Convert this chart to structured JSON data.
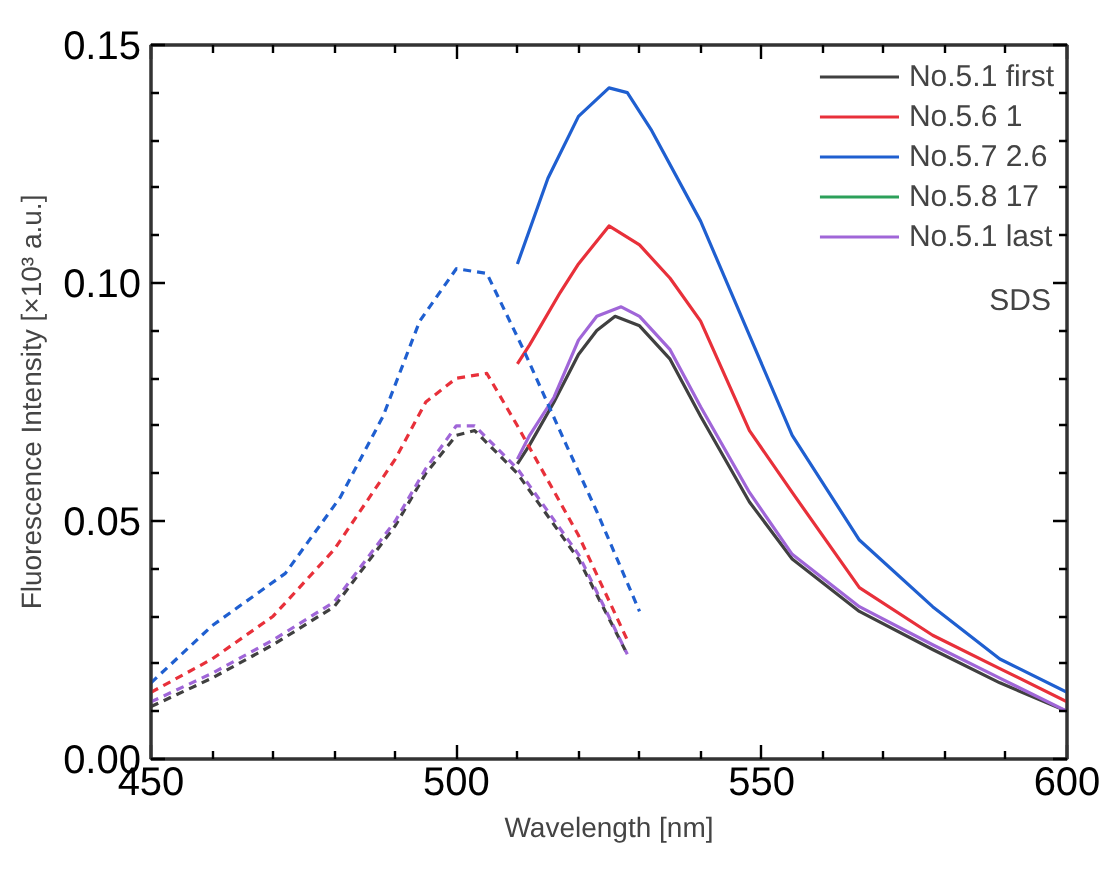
{
  "chart_data": {
    "type": "line",
    "xlabel": "Wavelength [nm]",
    "ylabel": "Fluorescence Intensity [×10³ a.u.]",
    "xlim": [
      450,
      600
    ],
    "ylim": [
      0,
      0.15
    ],
    "xticks": [
      450,
      {
        "value": 460,
        "label": null
      },
      {
        "value": 470,
        "label": null
      },
      {
        "value": 480,
        "label": null
      },
      {
        "value": 490,
        "label": null
      },
      500,
      {
        "value": 510,
        "label": null
      },
      {
        "value": 520,
        "label": null
      },
      {
        "value": 530,
        "label": null
      },
      {
        "value": 540,
        "label": null
      },
      550,
      {
        "value": 560,
        "label": null
      },
      {
        "value": 570,
        "label": null
      },
      {
        "value": 580,
        "label": null
      },
      {
        "value": 590,
        "label": null
      },
      600
    ],
    "yticks": [
      {
        "value": 0,
        "label": "0.00"
      },
      {
        "value": 0.01,
        "label": null
      },
      {
        "value": 0.02,
        "label": null
      },
      {
        "value": 0.03,
        "label": null
      },
      {
        "value": 0.04,
        "label": null
      },
      {
        "value": 0.05,
        "label": "0.05"
      },
      {
        "value": 0.06,
        "label": null
      },
      {
        "value": 0.07,
        "label": null
      },
      {
        "value": 0.08,
        "label": null
      },
      {
        "value": 0.09,
        "label": null
      },
      {
        "value": 0.1,
        "label": "0.10"
      },
      {
        "value": 0.11,
        "label": null
      },
      {
        "value": 0.12,
        "label": null
      },
      {
        "value": 0.13,
        "label": null
      },
      {
        "value": 0.14,
        "label": null
      },
      {
        "value": 0.15,
        "label": "0.15"
      }
    ],
    "grid": false,
    "legend": "top right",
    "marker": "none",
    "annotations": [
      "SDS"
    ],
    "series": [
      {
        "name": "No.5.1 first",
        "color": "#404040",
        "line_style": "solid",
        "x": [
          510,
          512,
          516,
          520,
          523,
          526,
          530,
          535,
          540,
          548,
          555,
          566,
          578,
          589,
          600
        ],
        "values": [
          0.062,
          0.066,
          0.075,
          0.085,
          0.09,
          0.093,
          0.091,
          0.084,
          0.072,
          0.054,
          0.042,
          0.031,
          0.023,
          0.016,
          0.01
        ]
      },
      {
        "name": "No.5.6 1",
        "color": "#e8303a",
        "line_style": "solid",
        "x": [
          510,
          512,
          517,
          520,
          525,
          530,
          535,
          540,
          548,
          555,
          566,
          578,
          589,
          600
        ],
        "values": [
          0.083,
          0.087,
          0.098,
          0.104,
          0.112,
          0.108,
          0.101,
          0.092,
          0.069,
          0.056,
          0.036,
          0.026,
          0.019,
          0.012
        ]
      },
      {
        "name": "No.5.7 2.6",
        "color": "#1f5fd0",
        "line_style": "solid",
        "x": [
          510,
          515,
          520,
          525,
          528,
          532,
          540,
          548,
          555,
          566,
          578,
          589,
          600
        ],
        "values": [
          0.104,
          0.122,
          0.135,
          0.141,
          0.14,
          0.132,
          0.113,
          0.089,
          0.068,
          0.046,
          0.032,
          0.021,
          0.014
        ]
      },
      {
        "name": "No.5.8 17",
        "color": "#2ca05a",
        "line_style": "solid"
      },
      {
        "name": "No.5.1 last",
        "color": "#a066d8",
        "line_style": "solid",
        "x": [
          510,
          512,
          516,
          520,
          523,
          527,
          530,
          535,
          540,
          548,
          555,
          566,
          578,
          589,
          600
        ],
        "values": [
          0.063,
          0.068,
          0.076,
          0.088,
          0.093,
          0.095,
          0.093,
          0.086,
          0.074,
          0.056,
          0.043,
          0.032,
          0.024,
          0.017,
          0.01
        ]
      },
      {
        "color": "#404040",
        "line_style": "dashed",
        "x": [
          450,
          460,
          470,
          480,
          490,
          495,
          500,
          503,
          510,
          520,
          528
        ],
        "values": [
          0.011,
          0.017,
          0.024,
          0.032,
          0.049,
          0.06,
          0.068,
          0.069,
          0.06,
          0.042,
          0.022
        ]
      },
      {
        "color": "#e8303a",
        "line_style": "dashed",
        "x": [
          450,
          460,
          470,
          480,
          490,
          495,
          500,
          505,
          510,
          520,
          528
        ],
        "values": [
          0.014,
          0.021,
          0.03,
          0.044,
          0.063,
          0.075,
          0.08,
          0.081,
          0.07,
          0.047,
          0.025
        ]
      },
      {
        "color": "#1f5fd0",
        "line_style": "dashed",
        "x": [
          450,
          460,
          472,
          481,
          488,
          494,
          500,
          505,
          511,
          518,
          523,
          530
        ],
        "values": [
          0.016,
          0.028,
          0.039,
          0.055,
          0.072,
          0.092,
          0.103,
          0.102,
          0.086,
          0.066,
          0.052,
          0.031
        ]
      },
      {
        "color": "#a066d8",
        "line_style": "dashed",
        "x": [
          450,
          460,
          470,
          480,
          490,
          495,
          500,
          503,
          510,
          520,
          528
        ],
        "values": [
          0.012,
          0.018,
          0.025,
          0.033,
          0.05,
          0.061,
          0.07,
          0.07,
          0.061,
          0.043,
          0.022
        ]
      }
    ]
  }
}
